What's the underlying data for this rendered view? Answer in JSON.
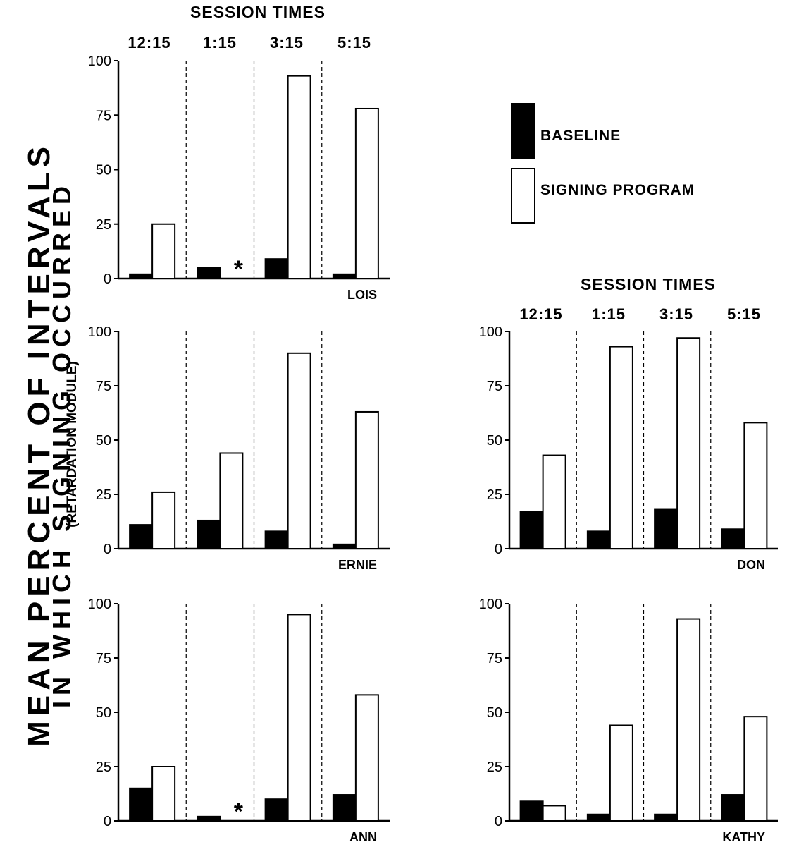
{
  "chart_data": {
    "type": "bar",
    "ylabel_line1": "MEAN PERCENT OF INTERVALS",
    "ylabel_line2": "IN WHICH SIGNING OCCURRED",
    "ylabel_line3": "(RETARDATION MODULE)",
    "session_title": "SESSION TIMES",
    "categories": [
      "12:15",
      "1:15",
      "3:15",
      "5:15"
    ],
    "ylim": [
      0,
      100
    ],
    "yticks": [
      0,
      25,
      50,
      75,
      100
    ],
    "legend": {
      "placement": "top-right",
      "entries": [
        "BASELINE",
        "SIGNING PROGRAM"
      ],
      "colors": [
        "#000000",
        "#ffffff"
      ]
    },
    "panels": [
      {
        "name": "LOIS",
        "series": [
          {
            "name": "BASELINE",
            "values": [
              2,
              5,
              9,
              2
            ]
          },
          {
            "name": "SIGNING PROGRAM",
            "values": [
              25,
              null,
              93,
              78
            ]
          }
        ],
        "annotations": [
          {
            "category": "1:15",
            "text": "*"
          }
        ]
      },
      {
        "name": "ERNIE",
        "series": [
          {
            "name": "BASELINE",
            "values": [
              11,
              13,
              8,
              2
            ]
          },
          {
            "name": "SIGNING PROGRAM",
            "values": [
              26,
              44,
              90,
              63
            ]
          }
        ],
        "annotations": []
      },
      {
        "name": "ANN",
        "series": [
          {
            "name": "BASELINE",
            "values": [
              15,
              2,
              10,
              12
            ]
          },
          {
            "name": "SIGNING PROGRAM",
            "values": [
              25,
              null,
              95,
              58
            ]
          }
        ],
        "annotations": [
          {
            "category": "1:15",
            "text": "*"
          }
        ]
      },
      {
        "name": "DON",
        "series": [
          {
            "name": "BASELINE",
            "values": [
              17,
              8,
              18,
              9
            ]
          },
          {
            "name": "SIGNING PROGRAM",
            "values": [
              43,
              93,
              97,
              58
            ]
          }
        ],
        "annotations": []
      },
      {
        "name": "KATHY",
        "series": [
          {
            "name": "BASELINE",
            "values": [
              9,
              3,
              3,
              12
            ]
          },
          {
            "name": "SIGNING PROGRAM",
            "values": [
              7,
              44,
              93,
              48
            ]
          }
        ],
        "annotations": []
      }
    ]
  }
}
